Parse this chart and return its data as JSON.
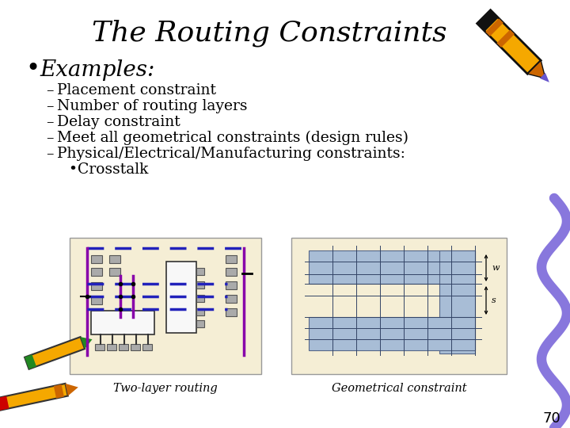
{
  "title": "The Routing Constraints",
  "bullet": "Examples:",
  "items": [
    "Placement constraint",
    "Number of routing layers",
    "Delay constraint",
    "Meet all geometrical constraints (design rules)",
    "Physical/Electrical/Manufacturing constraints:"
  ],
  "sub_item": "Crosstalk",
  "caption_left": "Two-layer routing",
  "caption_right": "Geometrical constraint",
  "page_number": "70",
  "bg_color": "#FFFFFF",
  "title_color": "#000000",
  "text_color": "#000000",
  "title_fontsize": 26,
  "bullet_fontsize": 20,
  "item_fontsize": 13.5,
  "page_fontsize": 13,
  "diagram_bg": "#F5EED5",
  "dashed_blue": "#2222BB",
  "purple_line": "#8800AA",
  "gray_box": "#AAAAAA",
  "light_blue": "#A8BDD6",
  "crayon_yellow": "#F5A800",
  "crayon_dark": "#CC6600",
  "crayon_black": "#111111",
  "crayon_purple": "#6655CC",
  "squiggle_color": "#8877DD",
  "pencil_orange": "#E87000",
  "pencil_red": "#CC0000",
  "pencil_green": "#228822"
}
